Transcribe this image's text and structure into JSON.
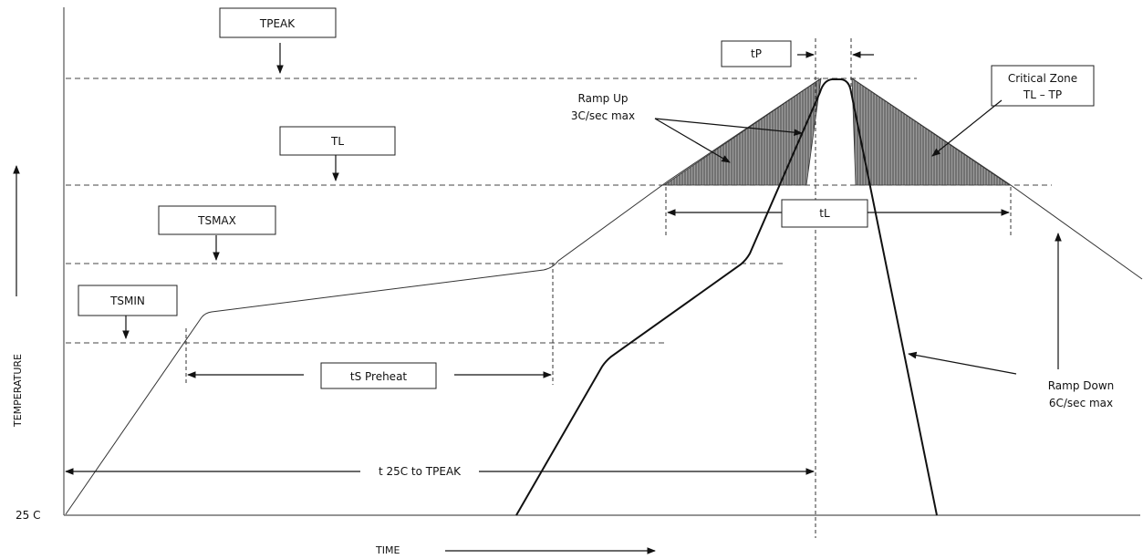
{
  "axes": {
    "y_title": "TEMPERATURE",
    "y_origin": "25 C",
    "x_title": "TIME"
  },
  "levels": {
    "tpeak": "TPEAK",
    "tl": "TL",
    "tsmax": "TSMAX",
    "tsmin": "TSMIN"
  },
  "intervals": {
    "tp": "tP",
    "tl": "tL",
    "ts_preheat": "tS Preheat",
    "t25_to_peak": "t 25C to TPEAK"
  },
  "annotations": {
    "ramp_up_line1": "Ramp Up",
    "ramp_up_line2": "3C/sec max",
    "ramp_down_line1": "Ramp Down",
    "ramp_down_line2": "6C/sec max",
    "critical_line1": "Critical Zone",
    "critical_line2": "TL – TP"
  }
}
